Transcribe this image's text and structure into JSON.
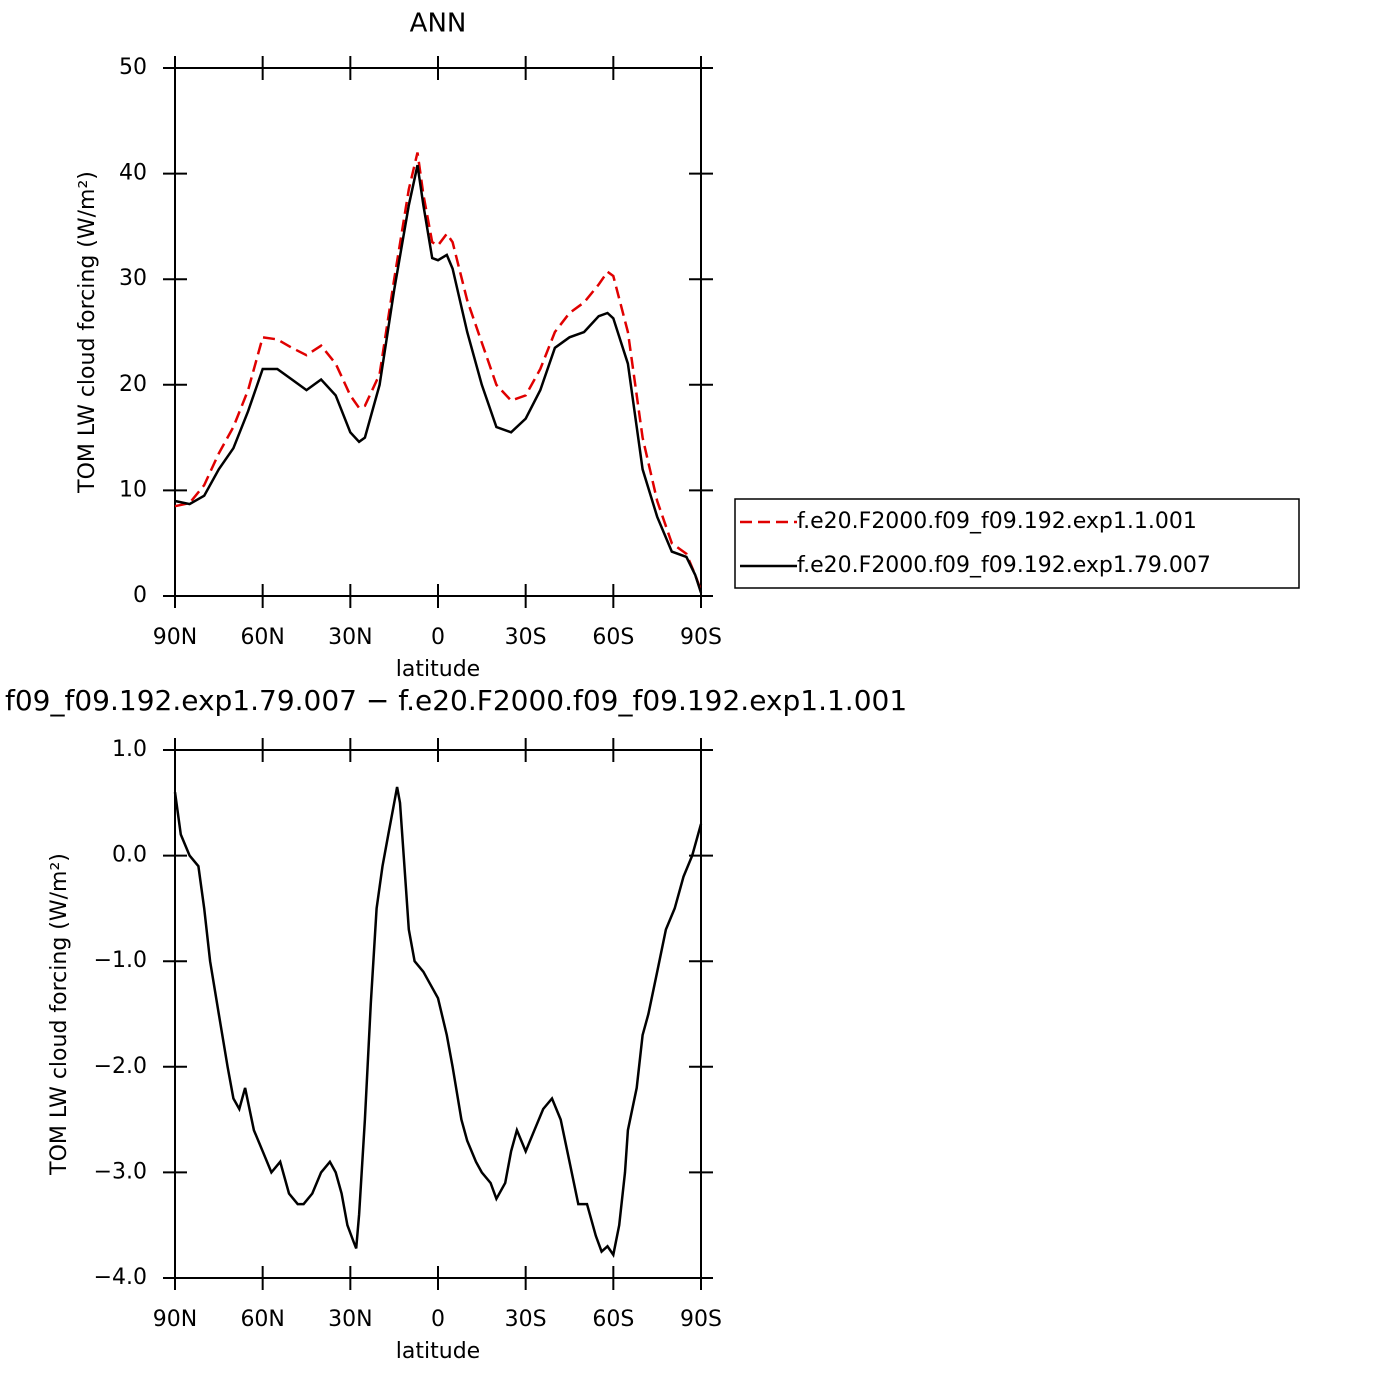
{
  "chart_data": [
    {
      "type": "line",
      "title": "ANN",
      "xlabel": "latitude",
      "ylabel": "TOM LW cloud forcing (W/m²)",
      "x": [
        90,
        85,
        80,
        75,
        70,
        65,
        60,
        55,
        50,
        45,
        40,
        35,
        30,
        27,
        25,
        20,
        15,
        10,
        7,
        5,
        2,
        0,
        -3,
        -5,
        -10,
        -15,
        -20,
        -25,
        -30,
        -35,
        -40,
        -45,
        -50,
        -55,
        -58,
        -60,
        -65,
        -70,
        -75,
        -80,
        -85,
        -88,
        -90
      ],
      "series": [
        {
          "name": "f.e20.F2000.f09_f09.192.exp1.1.001",
          "color": "#e00000",
          "line_style": "dashed",
          "values": [
            8.5,
            8.8,
            10.5,
            13.5,
            16,
            19.5,
            24.5,
            24.3,
            23.5,
            22.8,
            23.7,
            22,
            19,
            17.8,
            18,
            21,
            30,
            38.5,
            42,
            38,
            33.5,
            33.2,
            34.3,
            33.5,
            28,
            24,
            20,
            18.5,
            19,
            21.5,
            25,
            26.8,
            27.8,
            29.5,
            30.7,
            30.3,
            25,
            15,
            9,
            5,
            4,
            2,
            0.5
          ]
        },
        {
          "name": "f.e20.F2000.f09_f09.192.exp1.79.007",
          "color": "#000000",
          "line_style": "solid",
          "values": [
            9,
            8.7,
            9.5,
            12,
            14,
            17.5,
            21.5,
            21.5,
            20.5,
            19.5,
            20.5,
            19,
            15.5,
            14.6,
            15,
            20,
            29,
            37,
            40.8,
            37,
            32,
            31.8,
            32.3,
            31,
            25,
            20,
            16,
            15.5,
            16.8,
            19.5,
            23.5,
            24.5,
            25,
            26.5,
            26.8,
            26.3,
            22,
            12,
            7.5,
            4.2,
            3.7,
            2,
            0.3
          ]
        }
      ],
      "xlim": [
        90,
        -90
      ],
      "xticks": [
        {
          "value": 90,
          "label": "90N"
        },
        {
          "value": 60,
          "label": "60N"
        },
        {
          "value": 30,
          "label": "30N"
        },
        0,
        {
          "value": -30,
          "label": "30S"
        },
        {
          "value": -60,
          "label": "60S"
        },
        {
          "value": -90,
          "label": "90S"
        }
      ],
      "ylim": [
        0,
        50
      ],
      "yticks": [
        0,
        10,
        20,
        30,
        40,
        50
      ],
      "legend": "right"
    },
    {
      "type": "line",
      "title": "f09_f09.192.exp1.79.007 − f.e20.F2000.f09_f09.192.exp1.1.001",
      "xlabel": "latitude",
      "ylabel": "TOM LW cloud forcing (W/m²)",
      "x": [
        90,
        88,
        85,
        82,
        80,
        78,
        75,
        72,
        70,
        68,
        66,
        63,
        60,
        57,
        54,
        51,
        48,
        46,
        43,
        40,
        37,
        35,
        33,
        31,
        29,
        28,
        27,
        25,
        23,
        21,
        19,
        17,
        15,
        14,
        13,
        11,
        10,
        8,
        5,
        3,
        0,
        -3,
        -5,
        -8,
        -10,
        -13,
        -15,
        -18,
        -20,
        -23,
        -25,
        -27,
        -30,
        -33,
        -36,
        -39,
        -42,
        -45,
        -48,
        -51,
        -54,
        -56,
        -58,
        -60,
        -62,
        -64,
        -65,
        -68,
        -70,
        -72,
        -75,
        -78,
        -81,
        -84,
        -87,
        -90
      ],
      "series": [
        {
          "color": "#000000",
          "line_style": "solid",
          "values": [
            0.6,
            0.2,
            0.0,
            -0.1,
            -0.5,
            -1.0,
            -1.5,
            -2.0,
            -2.3,
            -2.4,
            -2.2,
            -2.6,
            -2.8,
            -3.0,
            -2.9,
            -3.2,
            -3.3,
            -3.3,
            -3.2,
            -3.0,
            -2.9,
            -3.0,
            -3.2,
            -3.5,
            -3.65,
            -3.72,
            -3.4,
            -2.5,
            -1.4,
            -0.5,
            -0.1,
            0.2,
            0.5,
            0.65,
            0.5,
            -0.3,
            -0.7,
            -1.0,
            -1.1,
            -1.2,
            -1.35,
            -1.7,
            -2.0,
            -2.5,
            -2.7,
            -2.9,
            -3.0,
            -3.1,
            -3.25,
            -3.1,
            -2.8,
            -2.6,
            -2.8,
            -2.6,
            -2.4,
            -2.3,
            -2.5,
            -2.9,
            -3.3,
            -3.3,
            -3.6,
            -3.75,
            -3.7,
            -3.78,
            -3.5,
            -3.0,
            -2.6,
            -2.2,
            -1.7,
            -1.5,
            -1.1,
            -0.7,
            -0.5,
            -0.2,
            0.0,
            0.3
          ]
        }
      ],
      "xlim": [
        90,
        -90
      ],
      "xticks": [
        {
          "value": 90,
          "label": "90N"
        },
        {
          "value": 60,
          "label": "60N"
        },
        {
          "value": 30,
          "label": "30N"
        },
        0,
        {
          "value": -30,
          "label": "30S"
        },
        {
          "value": -60,
          "label": "60S"
        },
        {
          "value": -90,
          "label": "90S"
        }
      ],
      "ylim": [
        -4,
        1
      ],
      "yticks": [
        {
          "value": -4,
          "label": "−4.0"
        },
        {
          "value": -3,
          "label": "−3.0"
        },
        {
          "value": -2,
          "label": "−2.0"
        },
        {
          "value": -1,
          "label": "−1.0"
        },
        {
          "value": 0,
          "label": "0.0"
        },
        {
          "value": 1,
          "label": "1.0"
        }
      ]
    }
  ]
}
